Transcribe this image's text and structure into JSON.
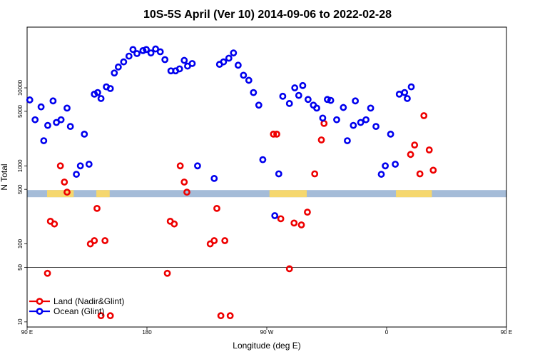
{
  "chart_data": {
    "type": "scatter",
    "title": "10S-5S April (Ver 10)   2014-09-06 to 2022-02-28",
    "xlabel": "Longitude (deg E)",
    "ylabel": "N Total",
    "yscale": "log",
    "xlim": [
      90,
      450
    ],
    "ylim": [
      8.6,
      60000
    ],
    "x_ticks": [
      {
        "value": 90,
        "label": "90 E"
      },
      {
        "value": 180,
        "label": "180"
      },
      {
        "value": 270,
        "label": "90 W"
      },
      {
        "value": 360,
        "label": "0"
      },
      {
        "value": 450,
        "label": "90 E"
      },
      {
        "value": 540,
        "label": "180"
      }
    ],
    "y_ticks": [
      {
        "value": 10,
        "label": "10"
      },
      {
        "value": 50,
        "label": "50"
      },
      {
        "value": 100,
        "label": "100"
      },
      {
        "value": 500,
        "label": "500"
      },
      {
        "value": 1000,
        "label": "1000"
      },
      {
        "value": 5000,
        "label": "5000"
      },
      {
        "value": 10000,
        "label": "10000"
      }
    ],
    "reference_line": 50,
    "legend_position": "bottom-left",
    "land_band_color": "#f5d76e",
    "ocean_band_color": "#a5bcd8",
    "land_spans": [
      [
        105,
        125
      ],
      [
        142,
        152
      ],
      [
        272,
        300
      ],
      [
        367,
        394
      ],
      [
        465,
        486
      ],
      [
        502,
        511
      ]
    ],
    "series": [
      {
        "name": "Land (Nadir&Glint)",
        "color": "#ee0000",
        "points": [
          [
            105.3,
            42
          ],
          [
            107.5,
            195
          ],
          [
            110.5,
            180
          ],
          [
            115,
            1000
          ],
          [
            118,
            620
          ],
          [
            120,
            460
          ],
          [
            137.5,
            100
          ],
          [
            140.5,
            110
          ],
          [
            142.5,
            285
          ],
          [
            145.5,
            12
          ],
          [
            148.5,
            110
          ],
          [
            152.5,
            12
          ],
          [
            275,
            2550
          ],
          [
            277.5,
            2550
          ],
          [
            280.5,
            210
          ],
          [
            287,
            48
          ],
          [
            290.5,
            185
          ],
          [
            296,
            175
          ],
          [
            300.5,
            255
          ],
          [
            306,
            790
          ],
          [
            313,
            3500
          ],
          [
            311,
            2150
          ],
          [
            378,
            1400
          ],
          [
            381,
            1850
          ],
          [
            385,
            790
          ],
          [
            388,
            4400
          ],
          [
            392,
            1600
          ],
          [
            395,
            880
          ],
          [
            195.3,
            42
          ],
          [
            197.5,
            195
          ],
          [
            200.5,
            180
          ],
          [
            205,
            1000
          ],
          [
            208,
            620
          ],
          [
            210,
            460
          ],
          [
            227.5,
            100
          ],
          [
            230.5,
            110
          ],
          [
            232.5,
            285
          ],
          [
            235.5,
            12
          ],
          [
            238.5,
            110
          ],
          [
            242.5,
            12
          ]
        ]
      },
      {
        "name": "Ocean (Glint)",
        "color": "#0000ee",
        "points": [
          [
            92,
            7000
          ],
          [
            96,
            3900
          ],
          [
            100.5,
            5700
          ],
          [
            102.5,
            2100
          ],
          [
            105.5,
            3300
          ],
          [
            109.5,
            6800
          ],
          [
            112,
            3600
          ],
          [
            115.5,
            3900
          ],
          [
            120,
            5500
          ],
          [
            122.5,
            3200
          ],
          [
            127,
            780
          ],
          [
            130,
            1000
          ],
          [
            133,
            2550
          ],
          [
            136.5,
            1050
          ],
          [
            140.5,
            8300
          ],
          [
            143,
            8700
          ],
          [
            145.5,
            7300
          ],
          [
            149.5,
            10300
          ],
          [
            152.5,
            9800
          ],
          [
            155.5,
            15500
          ],
          [
            158.5,
            18500
          ],
          [
            162.5,
            21500
          ],
          [
            166.5,
            25500
          ],
          [
            169.5,
            31000
          ],
          [
            172.5,
            27500
          ],
          [
            177,
            30000
          ],
          [
            179.5,
            31000
          ],
          [
            183,
            28000
          ],
          [
            186.5,
            31500
          ],
          [
            190,
            29000
          ],
          [
            193.5,
            23000
          ],
          [
            198,
            16500
          ],
          [
            201.5,
            16500
          ],
          [
            204.5,
            17500
          ],
          [
            208,
            22500
          ],
          [
            210.5,
            19000
          ],
          [
            214,
            20500
          ],
          [
            218,
            1000
          ],
          [
            230.5,
            690
          ],
          [
            234.5,
            20000
          ],
          [
            237.5,
            21500
          ],
          [
            241.5,
            24000
          ],
          [
            245,
            28000
          ],
          [
            248.5,
            19500
          ],
          [
            252.5,
            14500
          ],
          [
            256.5,
            12500
          ],
          [
            260,
            8700
          ],
          [
            264,
            6000
          ],
          [
            267,
            1200
          ],
          [
            276,
            230
          ],
          [
            279,
            790
          ],
          [
            282,
            7800
          ],
          [
            287,
            6300
          ],
          [
            291,
            10000
          ],
          [
            294,
            8000
          ],
          [
            297,
            10700
          ],
          [
            301,
            7100
          ],
          [
            305,
            6000
          ],
          [
            307.5,
            5500
          ],
          [
            312,
            4100
          ],
          [
            315.5,
            7100
          ],
          [
            318,
            6900
          ],
          [
            322.5,
            3900
          ],
          [
            327.5,
            5600
          ],
          [
            330.5,
            2100
          ],
          [
            335,
            3300
          ],
          [
            336.5,
            6800
          ],
          [
            340.5,
            3600
          ],
          [
            344.5,
            3900
          ],
          [
            348,
            5500
          ],
          [
            352,
            3200
          ],
          [
            356,
            780
          ],
          [
            359,
            1000
          ],
          [
            363,
            2550
          ],
          [
            366.5,
            1050
          ],
          [
            369.5,
            8300
          ],
          [
            373.5,
            8700
          ],
          [
            375.5,
            7300
          ],
          [
            378.5,
            10300
          ]
        ]
      }
    ]
  }
}
